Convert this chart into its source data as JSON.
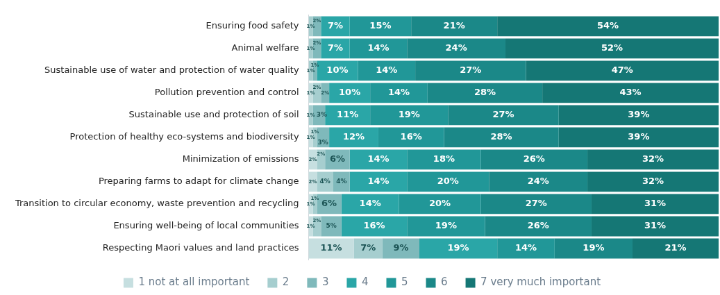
{
  "chart_data": {
    "type": "bar",
    "orientation": "horizontal",
    "stacked": true,
    "legend": "bottom",
    "grid": false,
    "categories": [
      "Ensuring food safety",
      "Animal welfare",
      "Sustainable use of water and protection of water quality",
      "Pollution prevention and control",
      "Sustainable use and protection of soil",
      "Protection of healthy eco-systems and biodiversity",
      "Minimization of emissions",
      "Preparing farms to adapt for climate change",
      "Transition to circular economy, waste prevention and recycling",
      "Ensuring well-being of local communities",
      "Respecting Maori values and land practices"
    ],
    "series": [
      {
        "name": "1 not at all important",
        "color": "#c6dfe0",
        "values": [
          0,
          0,
          0,
          1,
          0,
          1,
          2,
          2,
          1,
          1,
          11
        ],
        "value_labels": [
          null,
          null,
          null,
          "1%",
          null,
          "1%",
          "2%",
          "2%",
          "1%",
          "1%",
          "11%"
        ]
      },
      {
        "name": "2",
        "color": "#a6cecf",
        "values": [
          1,
          1,
          1,
          2,
          1,
          1,
          2,
          4,
          1,
          2,
          7
        ],
        "value_labels": [
          "1%",
          "1%",
          "1%",
          "2%",
          "1%",
          "1%",
          "2%",
          "4%",
          "1%",
          "2%",
          "7%"
        ]
      },
      {
        "name": "3",
        "color": "#7fb9bb",
        "values": [
          2,
          2,
          1,
          2,
          3,
          3,
          6,
          4,
          6,
          5,
          9
        ],
        "value_labels": [
          "2%",
          "2%",
          "1%",
          "2%",
          "3%",
          "3%",
          "6%",
          "4%",
          "6%",
          "5%",
          "9%"
        ]
      },
      {
        "name": "4",
        "color": "#2aa6a7",
        "values": [
          7,
          7,
          10,
          10,
          11,
          12,
          14,
          14,
          14,
          16,
          19
        ],
        "value_labels": [
          "7%",
          "7%",
          "10%",
          "10%",
          "11%",
          "12%",
          "14%",
          "14%",
          "14%",
          "16%",
          "19%"
        ]
      },
      {
        "name": "5",
        "color": "#219798",
        "values": [
          15,
          14,
          14,
          14,
          19,
          16,
          18,
          20,
          20,
          19,
          14
        ],
        "value_labels": [
          "15%",
          "14%",
          "14%",
          "14%",
          "19%",
          "16%",
          "18%",
          "20%",
          "20%",
          "19%",
          "14%"
        ]
      },
      {
        "name": "6",
        "color": "#1b8888",
        "values": [
          21,
          24,
          27,
          28,
          27,
          28,
          26,
          24,
          27,
          26,
          19
        ],
        "value_labels": [
          "21%",
          "24%",
          "27%",
          "28%",
          "27%",
          "28%",
          "26%",
          "24%",
          "27%",
          "26%",
          "19%"
        ]
      },
      {
        "name": "7 very much important",
        "color": "#157775",
        "values": [
          54,
          52,
          47,
          43,
          39,
          39,
          32,
          32,
          31,
          31,
          21
        ],
        "value_labels": [
          "54%",
          "52%",
          "47%",
          "43%",
          "39%",
          "39%",
          "32%",
          "32%",
          "31%",
          "31%",
          "21%"
        ]
      }
    ]
  }
}
